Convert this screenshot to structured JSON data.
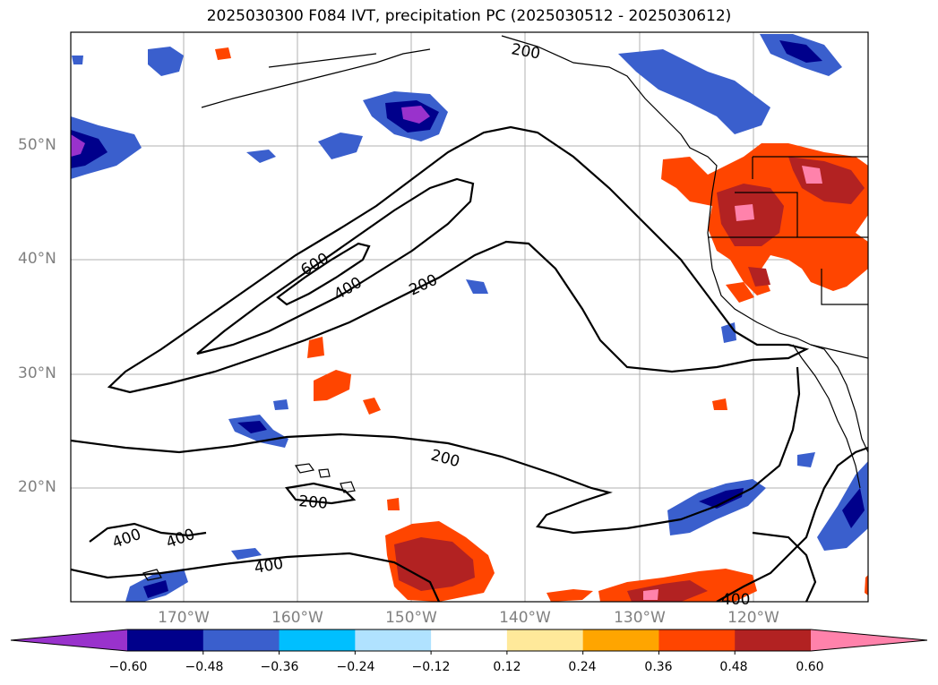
{
  "title": "2025030300 F084 IVT, precipitation PC (2025030512 - 2025030612)",
  "lat_labels": [
    "50°N",
    "40°N",
    "30°N",
    "20°N"
  ],
  "lon_labels": [
    "170°W",
    "160°W",
    "150°W",
    "140°W",
    "130°W",
    "120°W"
  ],
  "contour_labels": [
    "200",
    "600",
    "400",
    "200",
    "200",
    "200",
    "400",
    "400",
    "400",
    "400"
  ],
  "colorbar": {
    "ticks": [
      "−0.60",
      "−0.48",
      "−0.36",
      "−0.24",
      "−0.12",
      "0.12",
      "0.24",
      "0.36",
      "0.48",
      "0.60"
    ],
    "colors": [
      "#9932cc",
      "#00008b",
      "#3a5fcd",
      "#00bfff",
      "#b0e2ff",
      "#ffffff",
      "#ffe99a",
      "#ffa500",
      "#ff4500",
      "#b22222",
      "#ff82ab"
    ]
  }
}
